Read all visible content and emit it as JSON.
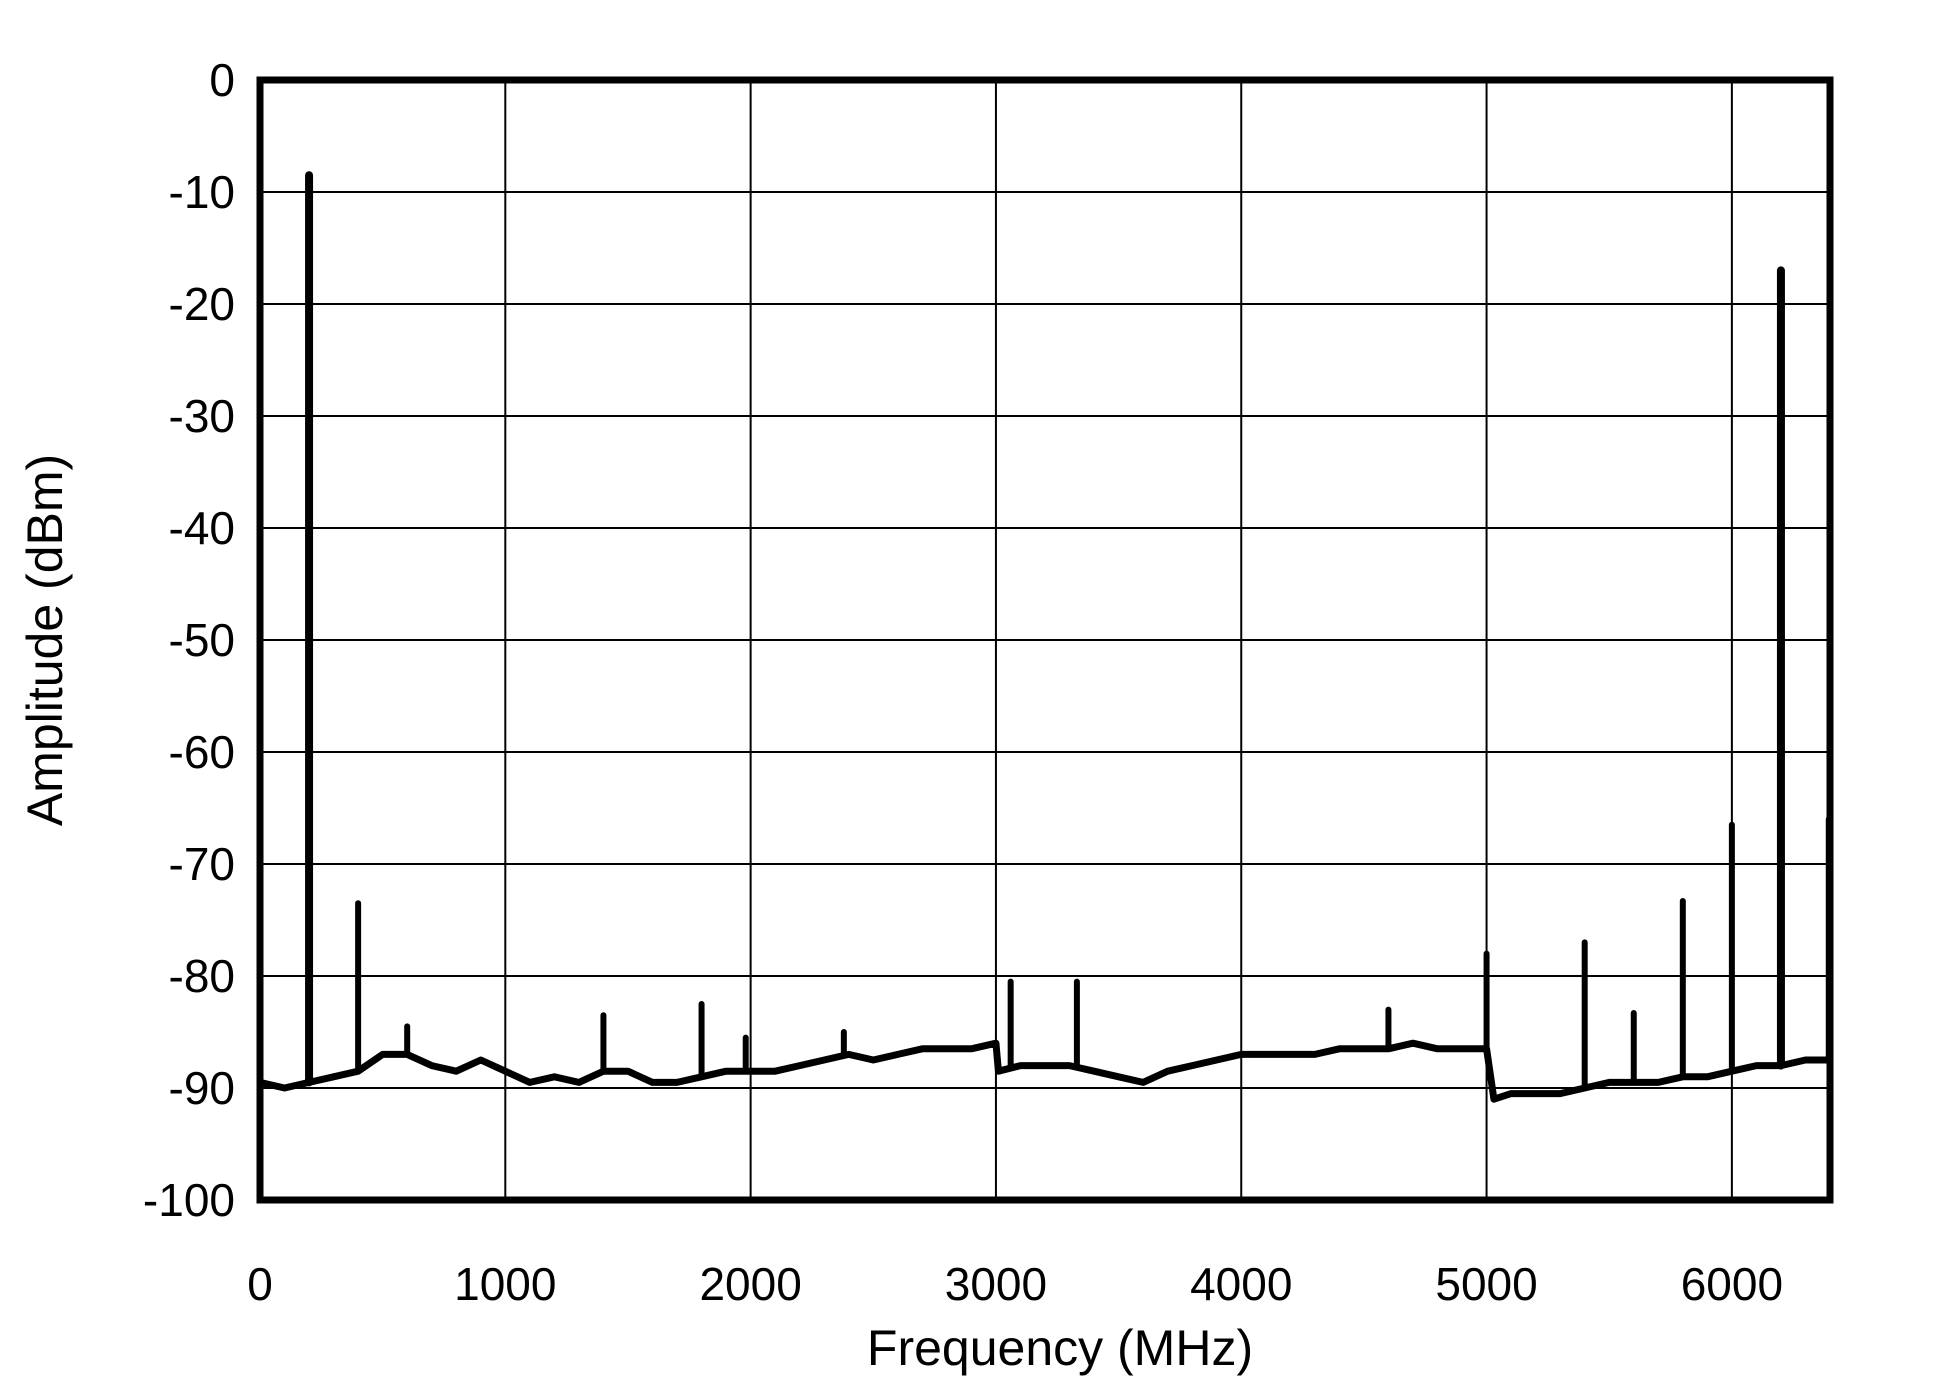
{
  "chart_data": {
    "type": "line",
    "title": "",
    "xlabel": "Frequency (MHz)",
    "ylabel": "Amplitude (dBm)",
    "xlim": [
      0,
      6400
    ],
    "ylim": [
      -100,
      0
    ],
    "xticks": [
      0,
      1000,
      2000,
      3000,
      4000,
      5000,
      6000
    ],
    "yticks": [
      0,
      -10,
      -20,
      -30,
      -40,
      -50,
      -60,
      -70,
      -80,
      -90,
      -100
    ],
    "grid": true,
    "legend": "none",
    "line_color": "#000000",
    "noise_floor": {
      "x": [
        0,
        100,
        200,
        300,
        400,
        500,
        600,
        700,
        800,
        900,
        1000,
        1100,
        1200,
        1300,
        1400,
        1500,
        1600,
        1700,
        1800,
        1900,
        2000,
        2100,
        2200,
        2300,
        2400,
        2500,
        2600,
        2700,
        2800,
        2900,
        3000,
        3010,
        3100,
        3200,
        3300,
        3400,
        3500,
        3600,
        3700,
        3800,
        3900,
        4000,
        4100,
        4200,
        4300,
        4400,
        4500,
        4600,
        4700,
        4800,
        4900,
        5000,
        5030,
        5100,
        5200,
        5300,
        5400,
        5500,
        5600,
        5700,
        5800,
        5900,
        6000,
        6100,
        6200,
        6300,
        6400
      ],
      "y": [
        -89.5,
        -90,
        -89.5,
        -89,
        -88.5,
        -87,
        -87,
        -88,
        -88.5,
        -87.5,
        -88.5,
        -89.5,
        -89,
        -89.5,
        -88.5,
        -88.5,
        -89.5,
        -89.5,
        -89,
        -88.5,
        -88.5,
        -88.5,
        -88,
        -87.5,
        -87,
        -87.5,
        -87,
        -86.5,
        -86.5,
        -86.5,
        -86,
        -88.5,
        -88,
        -88,
        -88,
        -88.5,
        -89,
        -89.5,
        -88.5,
        -88,
        -87.5,
        -87,
        -87,
        -87,
        -87,
        -86.5,
        -86.5,
        -86.5,
        -86,
        -86.5,
        -86.5,
        -86.5,
        -91,
        -90.5,
        -90.5,
        -90.5,
        -90,
        -89.5,
        -89.5,
        -89.5,
        -89,
        -89,
        -88.5,
        -88,
        -88,
        -87.5,
        -87.5
      ]
    },
    "peaks": [
      {
        "x": 200,
        "y": -8.5
      },
      {
        "x": 400,
        "y": -73.5
      },
      {
        "x": 600,
        "y": -84.5
      },
      {
        "x": 1400,
        "y": -83.5
      },
      {
        "x": 1800,
        "y": -82.5
      },
      {
        "x": 1980,
        "y": -85.5
      },
      {
        "x": 2380,
        "y": -85
      },
      {
        "x": 3060,
        "y": -80.5
      },
      {
        "x": 3330,
        "y": -80.5
      },
      {
        "x": 4600,
        "y": -83
      },
      {
        "x": 5000,
        "y": -78
      },
      {
        "x": 5400,
        "y": -77
      },
      {
        "x": 5600,
        "y": -83.3
      },
      {
        "x": 5800,
        "y": -73.3
      },
      {
        "x": 6000,
        "y": -66.5
      },
      {
        "x": 6200,
        "y": -17
      },
      {
        "x": 6395,
        "y": -66
      }
    ]
  }
}
